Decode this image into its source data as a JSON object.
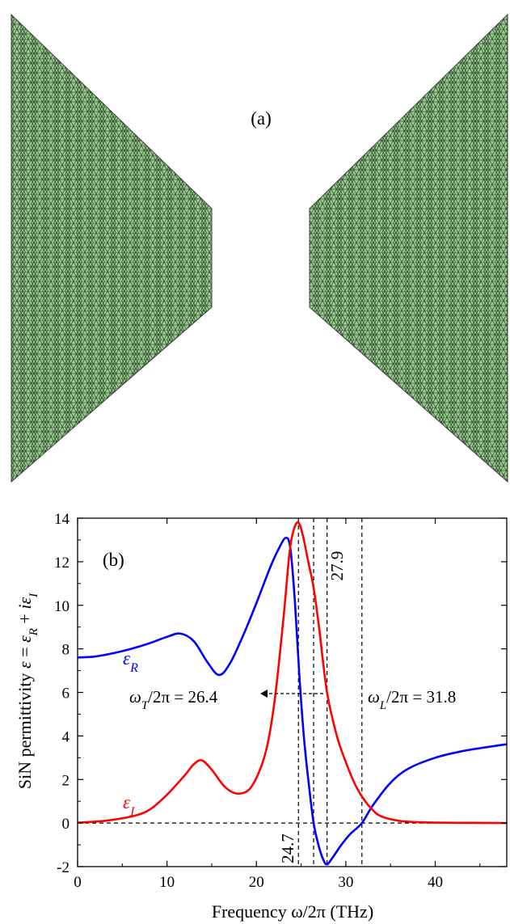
{
  "panel_a": {
    "label": "(a)",
    "mesh_color": "#99d08f",
    "mesh_line_color": "#1e2a1e"
  },
  "chart_data": {
    "type": "line",
    "panel_label": "(b)",
    "xlabel": "Frequency ω/2π (THz)",
    "ylabel_parts": [
      "SiN permittivity ",
      "ε",
      " = ",
      "ε",
      "R",
      " + ",
      "i",
      "ε",
      "I"
    ],
    "xlim": [
      0,
      48
    ],
    "ylim": [
      -2,
      14
    ],
    "x_ticks": [
      0,
      10,
      20,
      30,
      40
    ],
    "y_ticks": [
      -2,
      0,
      2,
      4,
      6,
      8,
      10,
      12,
      14
    ],
    "grid": false,
    "series": [
      {
        "name": "εR",
        "name_base": "ε",
        "name_sub": "R",
        "color": "#0000ff",
        "x": [
          0,
          2,
          4,
          6,
          8,
          10,
          11.5,
          13,
          14.5,
          15.8,
          17,
          18.5,
          20,
          21.5,
          22.5,
          23.3,
          23.8,
          24.3,
          24.8,
          25.3,
          25.8,
          26.4,
          27.0,
          27.5,
          27.9,
          28.5,
          29.5,
          30.5,
          31.8,
          33,
          35,
          37,
          40,
          43,
          46,
          48
        ],
        "y": [
          7.6,
          7.65,
          7.8,
          8.0,
          8.25,
          8.55,
          8.7,
          8.35,
          7.4,
          6.8,
          7.3,
          8.6,
          10.1,
          11.7,
          12.6,
          13.1,
          12.6,
          10.2,
          6.8,
          4.0,
          2.0,
          0.0,
          -1.1,
          -1.7,
          -1.9,
          -1.6,
          -1.0,
          -0.5,
          0.0,
          0.8,
          1.85,
          2.5,
          3.0,
          3.3,
          3.5,
          3.62
        ]
      },
      {
        "name": "εI",
        "name_base": "ε",
        "name_sub": "I",
        "color": "#ff0000",
        "x": [
          0,
          3,
          6,
          8,
          10,
          12,
          13,
          13.9,
          15,
          16.5,
          18,
          19.5,
          21,
          22,
          23,
          23.7,
          24.2,
          24.7,
          25.2,
          25.8,
          26.4,
          27.0,
          27.9,
          29,
          30,
          31,
          32,
          33,
          34,
          36,
          38,
          40,
          44,
          48
        ],
        "y": [
          0.02,
          0.1,
          0.3,
          0.6,
          1.3,
          2.2,
          2.7,
          2.88,
          2.45,
          1.65,
          1.35,
          1.7,
          3.2,
          5.5,
          9.3,
          12.4,
          13.5,
          13.8,
          13.2,
          12.0,
          10.8,
          9.0,
          6.0,
          4.0,
          2.8,
          1.8,
          1.1,
          0.6,
          0.3,
          0.1,
          0.04,
          0.02,
          0.01,
          0.0
        ]
      }
    ],
    "vlines": [
      24.7,
      26.4,
      27.9,
      31.8
    ],
    "hline": 0,
    "vline_labels": [
      "24.7",
      "27.9"
    ],
    "omega_T": {
      "base": "ω",
      "sub": "T",
      "rest": "/2π = 26.4"
    },
    "omega_L": {
      "base": "ω",
      "sub": "L",
      "rest": "/2π = 31.8"
    }
  }
}
